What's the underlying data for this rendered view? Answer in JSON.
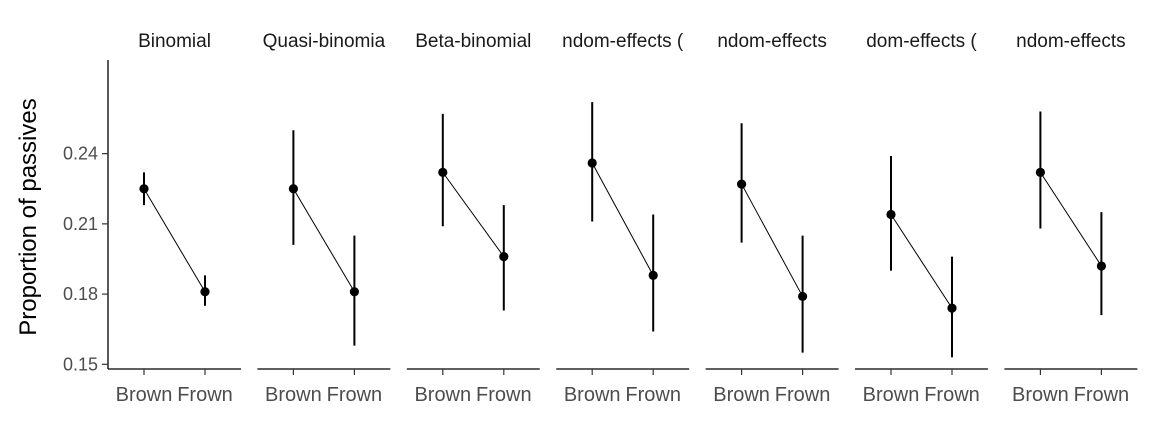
{
  "chart_data": {
    "type": "scatter",
    "ylabel": "Proportion of passives",
    "xlabel": "",
    "ylim": [
      0.148,
      0.28
    ],
    "yticks": [
      0.15,
      0.18,
      0.21,
      0.24
    ],
    "ytick_labels": [
      "0.15",
      "0.18",
      "0.21",
      "0.24"
    ],
    "categories": [
      "Brown",
      "Frown"
    ],
    "grid": false,
    "legend": "none",
    "color": "#000000",
    "panels": [
      {
        "title": "Binomial",
        "points": [
          {
            "x": "Brown",
            "y": 0.225,
            "lower": 0.218,
            "upper": 0.232
          },
          {
            "x": "Frown",
            "y": 0.181,
            "lower": 0.175,
            "upper": 0.188
          }
        ]
      },
      {
        "title": "Quasi-binomia",
        "points": [
          {
            "x": "Brown",
            "y": 0.225,
            "lower": 0.201,
            "upper": 0.25
          },
          {
            "x": "Frown",
            "y": 0.181,
            "lower": 0.158,
            "upper": 0.205
          }
        ]
      },
      {
        "title": "Beta-binomial",
        "points": [
          {
            "x": "Brown",
            "y": 0.232,
            "lower": 0.209,
            "upper": 0.257
          },
          {
            "x": "Frown",
            "y": 0.196,
            "lower": 0.173,
            "upper": 0.218
          }
        ]
      },
      {
        "title": "ndom-effects (",
        "points": [
          {
            "x": "Brown",
            "y": 0.236,
            "lower": 0.211,
            "upper": 0.262
          },
          {
            "x": "Frown",
            "y": 0.188,
            "lower": 0.164,
            "upper": 0.214
          }
        ]
      },
      {
        "title": "ndom-effects",
        "points": [
          {
            "x": "Brown",
            "y": 0.227,
            "lower": 0.202,
            "upper": 0.253
          },
          {
            "x": "Frown",
            "y": 0.179,
            "lower": 0.155,
            "upper": 0.205
          }
        ]
      },
      {
        "title": "dom-effects (",
        "points": [
          {
            "x": "Brown",
            "y": 0.214,
            "lower": 0.19,
            "upper": 0.239
          },
          {
            "x": "Frown",
            "y": 0.174,
            "lower": 0.153,
            "upper": 0.196
          }
        ]
      },
      {
        "title": "ndom-effects",
        "points": [
          {
            "x": "Brown",
            "y": 0.232,
            "lower": 0.208,
            "upper": 0.258
          },
          {
            "x": "Frown",
            "y": 0.192,
            "lower": 0.171,
            "upper": 0.215
          }
        ]
      }
    ]
  }
}
